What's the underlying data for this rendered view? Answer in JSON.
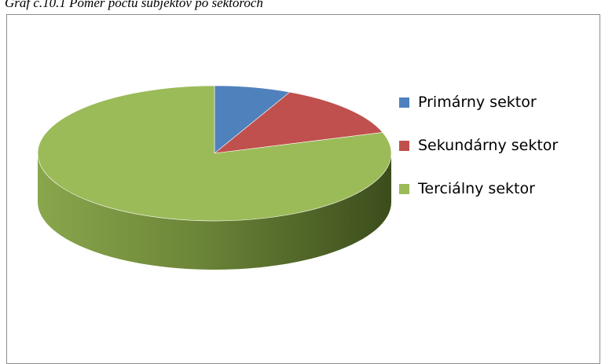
{
  "chart_data": {
    "type": "pie",
    "title": "Graf č.10.1 Pomer počtu subjektov po sektoroch",
    "categories": [
      "Primárny sektor",
      "Sekundárny sektor",
      "Terciálny sektor"
    ],
    "values": [
      7,
      13,
      80
    ],
    "colors": [
      "#4f81bd",
      "#c0504d",
      "#9bbb59"
    ],
    "legend": "right"
  }
}
